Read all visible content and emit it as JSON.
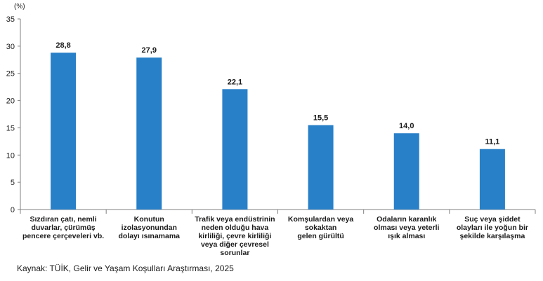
{
  "chart_data": {
    "type": "bar",
    "unit_label": "(%)",
    "categories": [
      "Sızdıran çatı, nemli duvarlar, çürümüş pencere çerçeveleri vb.",
      "Konutun izolasyonundan dolayı ısınamama",
      "Trafik veya endüstrinin neden olduğu hava kirliliği, çevre kirliliği veya diğer çevresel sorunlar",
      "Komşulardan veya sokaktan gelen gürültü",
      "Odaların karanlık olması veya yeterli ışık almaması",
      "Suç veya şiddet olayları ile yoğun bir şekilde karşılaşma"
    ],
    "category_lines": [
      "Sızdıran çatı, nemli\nduvarlar, çürümüş\npencere çerçeveleri vb.",
      "Konutun\nizolasyonundan\ndolayı ısınamama",
      "Trafik veya endüstrinin\nneden olduğu hava\nkirliliği, çevre kirliliği\nveya diğer çevresel\nsorunlar",
      "Komşulardan veya\nsokaktan\ngelen gürültü",
      "Odaların karanlık\nolması veya yeterli\nışık alması",
      "Suç veya şiddet\nolayları ile yoğun bir\nşekilde karşılaşma"
    ],
    "values": [
      28.8,
      27.9,
      22.1,
      15.5,
      14.0,
      11.1
    ],
    "value_labels": [
      "28,8",
      "27,9",
      "22,1",
      "15,5",
      "14,0",
      "11,1"
    ],
    "ylim": [
      0,
      35
    ],
    "yticks": [
      0,
      5,
      10,
      15,
      20,
      25,
      30,
      35
    ],
    "grid": false,
    "bar_color": "#2880c8"
  },
  "source": "Kaynak: TÜİK, Gelir ve Yaşam Koşulları Araştırması, 2025"
}
